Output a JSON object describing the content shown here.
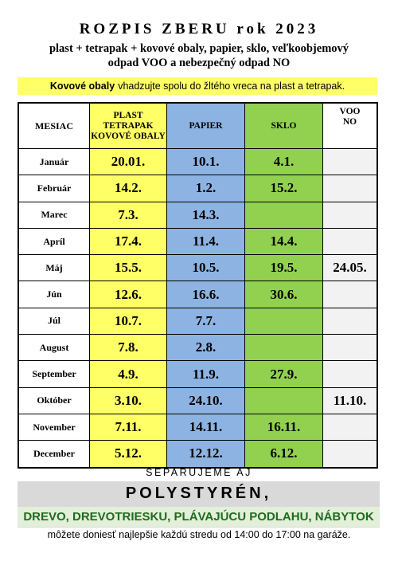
{
  "header": {
    "title": "ROZPIS ZBERU rok 2023",
    "subtitle_lines": [
      "plast + tetrapak +  kovové obaly, papier, sklo, veľkoobjemový",
      "odpad VOO a nebezpečný odpad NO"
    ]
  },
  "note": {
    "bold": "Kovové obaly",
    "text": "vhadzujte spolu do žltého vreca na plast a tetrapak."
  },
  "table": {
    "columns": [
      [
        "MESIAC"
      ],
      [
        "PLAST",
        "TETRAPAK",
        "KOVOVÉ OBALY"
      ],
      [
        "PAPIER"
      ],
      [
        "SKLO"
      ],
      [
        "VOO",
        "NO"
      ]
    ],
    "rows": [
      [
        "Január",
        "20.01.",
        "10.1.",
        "4.1.",
        null
      ],
      [
        "Február",
        "14.2.",
        "1.2.",
        "15.2.",
        null
      ],
      [
        "Marec",
        "7.3.",
        "14.3.",
        null,
        null
      ],
      [
        "Apríl",
        "17.4.",
        "11.4.",
        "14.4.",
        null
      ],
      [
        "Máj",
        "15.5.",
        "10.5.",
        "19.5.",
        "24.05."
      ],
      [
        "Jún",
        "12.6.",
        "16.6.",
        "30.6.",
        null
      ],
      [
        "Júl",
        "10.7.",
        "7.7.",
        null,
        null
      ],
      [
        "August",
        "7.8.",
        "2.8.",
        null,
        null
      ],
      [
        "September",
        "4.9.",
        "11.9.",
        "27.9.",
        null
      ],
      [
        "Október",
        "3.10.",
        "24.10.",
        null,
        "11.10."
      ],
      [
        "November",
        "7.11.",
        "14.11.",
        "16.11.",
        null
      ],
      [
        "December",
        "5.12.",
        "12.12.",
        "6.12.",
        null
      ]
    ]
  },
  "footer": {
    "intro": "SEPARUJEME AJ",
    "headline": "POLYSTYRÉN,",
    "items": "DREVO, DREVOTRIESKU, PLÁVAJÚCU PODLAHU, NÁBYTOK",
    "info": "môžete doniesť najlepšie každú stredu od 14:00 do 17:00 na garáže."
  }
}
